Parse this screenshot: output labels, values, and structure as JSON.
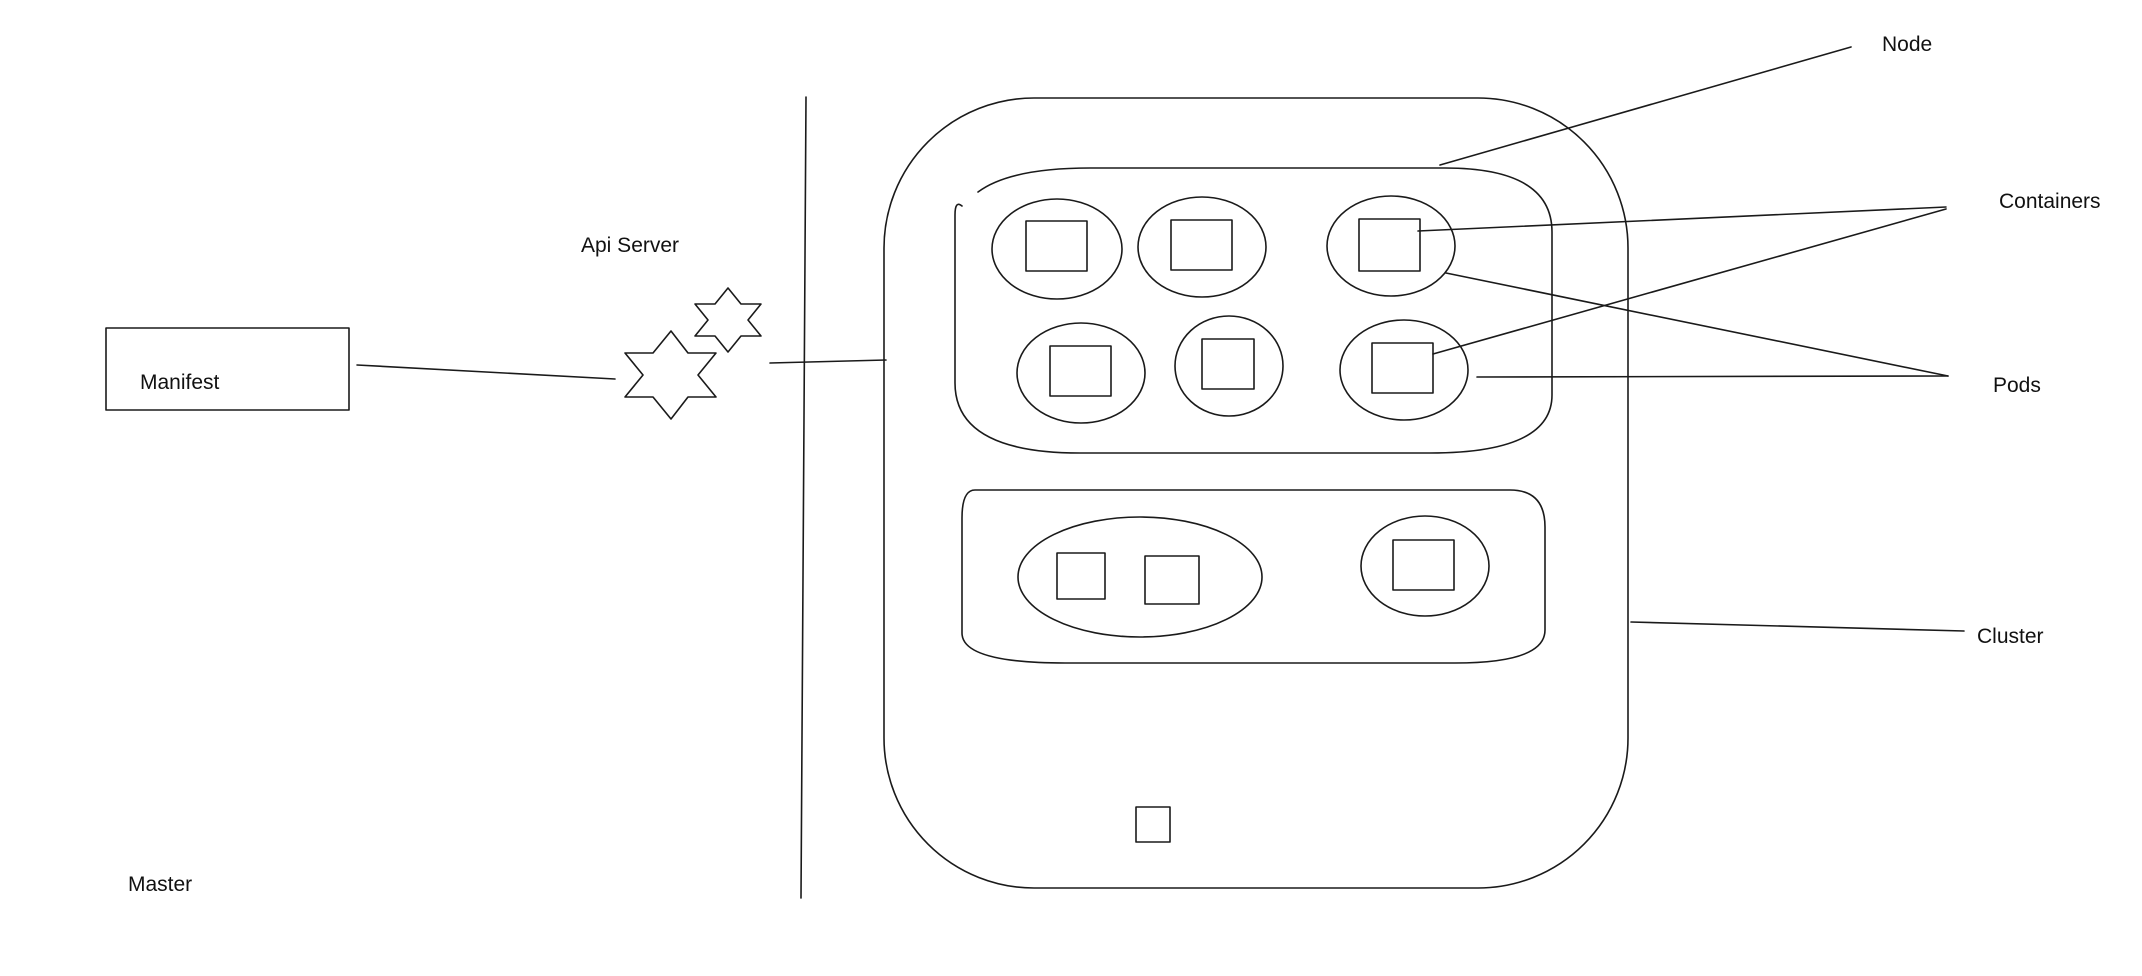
{
  "labels": {
    "manifest": "Manifest",
    "api_server": "Api Server",
    "master": "Master",
    "node": "Node",
    "containers": "Containers",
    "pods": "Pods",
    "cluster": "Cluster"
  },
  "colors": {
    "stroke": "#1a1a1a",
    "text": "#111111",
    "background": "#ffffff"
  }
}
